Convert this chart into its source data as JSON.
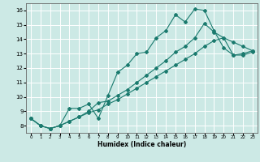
{
  "xlabel": "Humidex (Indice chaleur)",
  "xlim": [
    -0.5,
    23.5
  ],
  "ylim": [
    7.5,
    16.5
  ],
  "xticks": [
    0,
    1,
    2,
    3,
    4,
    5,
    6,
    7,
    8,
    9,
    10,
    11,
    12,
    13,
    14,
    15,
    16,
    17,
    18,
    19,
    20,
    21,
    22,
    23
  ],
  "yticks": [
    8,
    9,
    10,
    11,
    12,
    13,
    14,
    15,
    16
  ],
  "background_color": "#cce9e5",
  "grid_color": "#ffffff",
  "line_color": "#1a7a6e",
  "line1_x": [
    0,
    1,
    2,
    3,
    4,
    5,
    6,
    7,
    8,
    9,
    10,
    11,
    12,
    13,
    14,
    15,
    16,
    17,
    18,
    19,
    20,
    21,
    22,
    23
  ],
  "line1_y": [
    8.5,
    8.0,
    7.8,
    8.0,
    9.2,
    9.2,
    9.5,
    8.5,
    10.1,
    11.7,
    12.2,
    13.0,
    13.1,
    14.1,
    14.6,
    15.7,
    15.2,
    16.1,
    16.0,
    14.6,
    13.4,
    12.9,
    13.0,
    13.2
  ],
  "line2_x": [
    0,
    1,
    2,
    3,
    4,
    5,
    6,
    7,
    8,
    9,
    10,
    11,
    12,
    13,
    14,
    15,
    16,
    17,
    18,
    19,
    20,
    21,
    22,
    23
  ],
  "line2_y": [
    8.5,
    8.0,
    7.8,
    8.0,
    8.3,
    8.6,
    9.0,
    9.6,
    9.7,
    10.1,
    10.5,
    11.0,
    11.5,
    12.0,
    12.5,
    13.1,
    13.5,
    14.1,
    15.1,
    14.5,
    14.1,
    13.8,
    13.5,
    13.2
  ],
  "line3_x": [
    0,
    1,
    2,
    3,
    4,
    5,
    6,
    7,
    8,
    9,
    10,
    11,
    12,
    13,
    14,
    15,
    16,
    17,
    18,
    19,
    20,
    21,
    22,
    23
  ],
  "line3_y": [
    8.5,
    8.0,
    7.8,
    8.0,
    8.3,
    8.6,
    8.9,
    9.1,
    9.5,
    9.8,
    10.2,
    10.6,
    11.0,
    11.4,
    11.8,
    12.2,
    12.6,
    13.0,
    13.5,
    13.9,
    14.1,
    12.9,
    12.9,
    13.1
  ]
}
